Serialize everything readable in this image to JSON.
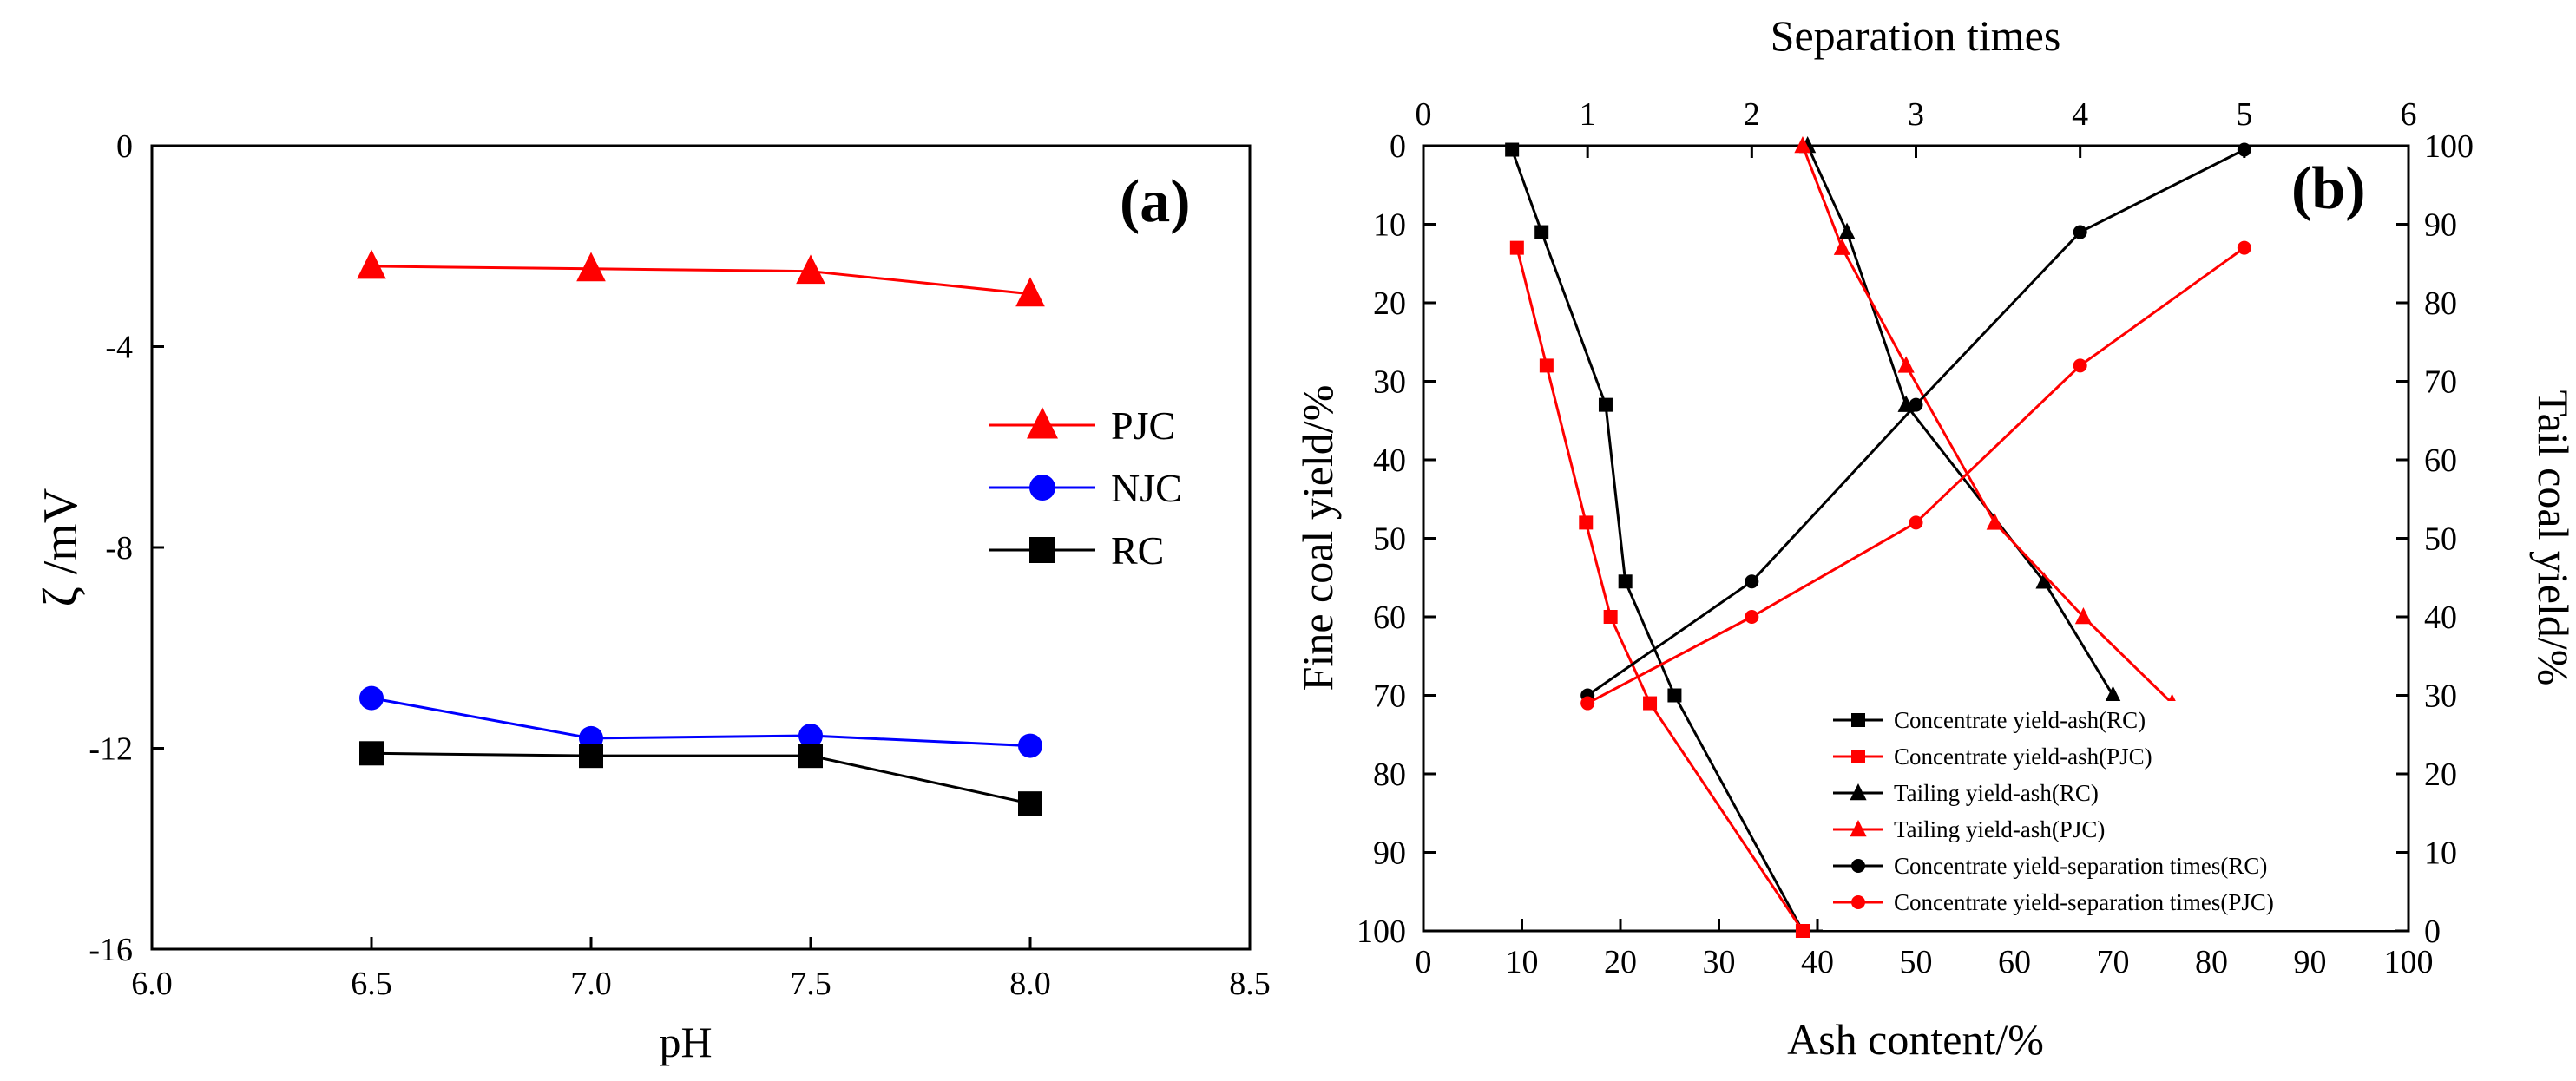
{
  "chart_data": [
    {
      "panel_label": "(a)",
      "type": "line",
      "title": "",
      "xlabel": "pH",
      "ylabel": "ζ /mV",
      "xlim": [
        6.0,
        8.5
      ],
      "ylim": [
        -16,
        0
      ],
      "xticks": [
        "6.0",
        "6.5",
        "7.0",
        "7.5",
        "8.0",
        "8.5"
      ],
      "yticks": [
        "0",
        "-4",
        "-8",
        "-12",
        "-16"
      ],
      "x": [
        6.5,
        7.0,
        7.5,
        8.0
      ],
      "legend_position": "right",
      "series": [
        {
          "name": "PJC",
          "color": "#ff0000",
          "marker": "triangle",
          "values": [
            -2.4,
            -2.45,
            -2.5,
            -2.95
          ]
        },
        {
          "name": "NJC",
          "color": "#0000ff",
          "marker": "circle",
          "values": [
            -11.0,
            -11.8,
            -11.75,
            -11.95
          ]
        },
        {
          "name": "RC",
          "color": "#000000",
          "marker": "square",
          "values": [
            -12.1,
            -12.15,
            -12.15,
            -13.1
          ]
        }
      ]
    },
    {
      "panel_label": "(b)",
      "type": "line",
      "title": "",
      "xlabel": "Ash content/%",
      "x2label": "Separation times",
      "ylabel": "Fine coal yield/%",
      "y2label": "Tail coal yield/%",
      "xlim": [
        0,
        100
      ],
      "x2lim": [
        0,
        6
      ],
      "ylim": [
        100,
        0
      ],
      "y2lim": [
        0,
        100
      ],
      "xticks": [
        "0",
        "10",
        "20",
        "30",
        "40",
        "50",
        "60",
        "70",
        "80",
        "90",
        "100"
      ],
      "x2ticks": [
        "0",
        "1",
        "2",
        "3",
        "4",
        "5",
        "6"
      ],
      "yticks": [
        "0",
        "10",
        "20",
        "30",
        "40",
        "50",
        "60",
        "70",
        "80",
        "90",
        "100"
      ],
      "y2ticks": [
        "100",
        "90",
        "80",
        "70",
        "60",
        "50",
        "40",
        "30",
        "20",
        "10",
        "0"
      ],
      "legend_position": "bottom-right",
      "series": [
        {
          "name": "Concentrate yield-ash(RC)",
          "color": "#000000",
          "marker": "square",
          "axis": "bottom-left",
          "points": [
            [
              9,
              0.5
            ],
            [
              12,
              11
            ],
            [
              18.5,
              33
            ],
            [
              20.5,
              55.5
            ],
            [
              25.5,
              70
            ],
            [
              38.5,
              100
            ]
          ]
        },
        {
          "name": "Concentrate yield-ash(PJC)",
          "color": "#ff0000",
          "marker": "square",
          "axis": "bottom-left",
          "points": [
            [
              9.5,
              13
            ],
            [
              12.5,
              28
            ],
            [
              16.5,
              48
            ],
            [
              19,
              60
            ],
            [
              23,
              71
            ],
            [
              38.5,
              100
            ]
          ]
        },
        {
          "name": "Tailing yield-ash(RC)",
          "color": "#000000",
          "marker": "triangle",
          "axis": "bottom-right",
          "points": [
            [
              39,
              100
            ],
            [
              43,
              89
            ],
            [
              49,
              67
            ],
            [
              63,
              44.5
            ],
            [
              70,
              30
            ]
          ]
        },
        {
          "name": "Tailing yield-ash(PJC)",
          "color": "#ff0000",
          "marker": "triangle",
          "axis": "bottom-right",
          "points": [
            [
              38.5,
              100
            ],
            [
              42.5,
              87
            ],
            [
              49,
              72
            ],
            [
              58,
              52
            ],
            [
              67,
              40
            ],
            [
              76,
              29
            ]
          ]
        },
        {
          "name": "Concentrate yield-separation times(RC)",
          "color": "#000000",
          "marker": "circle",
          "axis": "top-left",
          "points": [
            [
              1,
              70
            ],
            [
              2,
              55.5
            ],
            [
              3,
              33
            ],
            [
              4,
              11
            ],
            [
              5,
              0.5
            ]
          ]
        },
        {
          "name": "Concentrate yield-separation times(PJC)",
          "color": "#ff0000",
          "marker": "circle",
          "axis": "top-left",
          "points": [
            [
              1,
              71
            ],
            [
              2,
              60
            ],
            [
              3,
              48
            ],
            [
              4,
              28
            ],
            [
              5,
              13
            ]
          ]
        }
      ]
    }
  ]
}
